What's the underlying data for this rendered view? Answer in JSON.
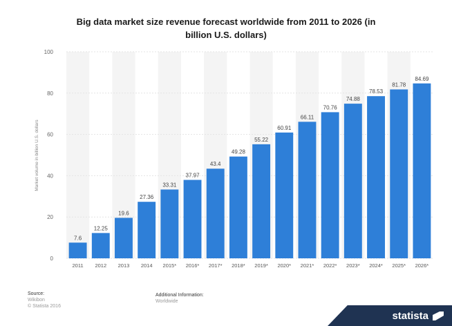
{
  "chart_data": {
    "type": "bar",
    "title": "Big data market size revenue forecast worldwide from 2011 to 2026 (in billion U.S. dollars)",
    "title_line1": "Big data market size revenue forecast worldwide from 2011 to 2026 (in",
    "title_line2": "billion U.S. dollars)",
    "ylabel": "Market volume in billion U.S. dollars",
    "xlabel": "",
    "ylim": [
      0,
      100
    ],
    "yticks": [
      "0",
      "20",
      "40",
      "60",
      "80",
      "100"
    ],
    "categories": [
      "2011",
      "2012",
      "2013",
      "2014",
      "2015*",
      "2016*",
      "2017*",
      "2018*",
      "2019*",
      "2020*",
      "2021*",
      "2022*",
      "2023*",
      "2024*",
      "2025*",
      "2026*"
    ],
    "values": [
      7.6,
      12.25,
      19.6,
      27.36,
      33.31,
      37.97,
      43.4,
      49.28,
      55.22,
      60.91,
      66.11,
      70.76,
      74.88,
      78.53,
      81.78,
      84.69
    ],
    "value_labels": [
      "7.6",
      "12.25",
      "19.6",
      "27.36",
      "33.31",
      "37.97",
      "43.4",
      "49.28",
      "55.22",
      "60.91",
      "66.11",
      "70.76",
      "74.88",
      "78.53",
      "81.78",
      "84.69"
    ],
    "bar_color": "#2e7fd8",
    "grid": true,
    "legend": "none"
  },
  "footer": {
    "source_label": "Source:",
    "source_name": "Wikibon",
    "copyright": "© Statista 2016",
    "additional_label": "Additional Information:",
    "additional_value": "Worldwide"
  },
  "brand": {
    "name": "statista",
    "bg_color": "#1f3352"
  }
}
